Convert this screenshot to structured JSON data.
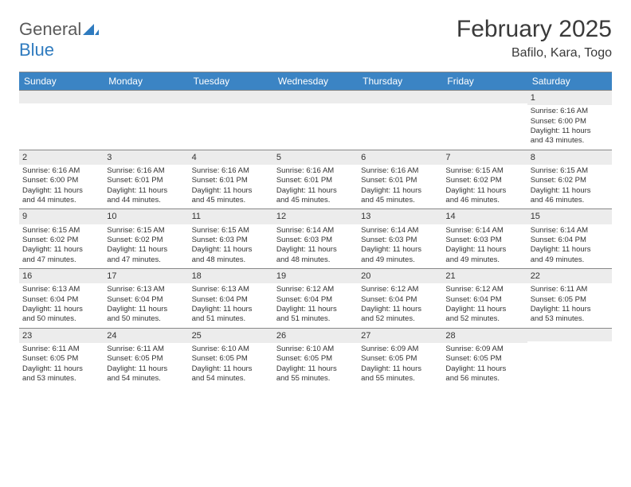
{
  "logo": {
    "text_general": "General",
    "text_blue": "Blue"
  },
  "title": "February 2025",
  "location": "Bafilo, Kara, Togo",
  "day_headers": [
    "Sunday",
    "Monday",
    "Tuesday",
    "Wednesday",
    "Thursday",
    "Friday",
    "Saturday"
  ],
  "colors": {
    "header_bg": "#3b84c4",
    "header_text": "#ffffff",
    "daynum_bg": "#ececec",
    "rule": "#888888",
    "text": "#333333"
  },
  "weeks": [
    [
      {
        "n": "",
        "sr": "",
        "ss": "",
        "da": "",
        "db": ""
      },
      {
        "n": "",
        "sr": "",
        "ss": "",
        "da": "",
        "db": ""
      },
      {
        "n": "",
        "sr": "",
        "ss": "",
        "da": "",
        "db": ""
      },
      {
        "n": "",
        "sr": "",
        "ss": "",
        "da": "",
        "db": ""
      },
      {
        "n": "",
        "sr": "",
        "ss": "",
        "da": "",
        "db": ""
      },
      {
        "n": "",
        "sr": "",
        "ss": "",
        "da": "",
        "db": ""
      },
      {
        "n": "1",
        "sr": "Sunrise: 6:16 AM",
        "ss": "Sunset: 6:00 PM",
        "da": "Daylight: 11 hours",
        "db": "and 43 minutes."
      }
    ],
    [
      {
        "n": "2",
        "sr": "Sunrise: 6:16 AM",
        "ss": "Sunset: 6:00 PM",
        "da": "Daylight: 11 hours",
        "db": "and 44 minutes."
      },
      {
        "n": "3",
        "sr": "Sunrise: 6:16 AM",
        "ss": "Sunset: 6:01 PM",
        "da": "Daylight: 11 hours",
        "db": "and 44 minutes."
      },
      {
        "n": "4",
        "sr": "Sunrise: 6:16 AM",
        "ss": "Sunset: 6:01 PM",
        "da": "Daylight: 11 hours",
        "db": "and 45 minutes."
      },
      {
        "n": "5",
        "sr": "Sunrise: 6:16 AM",
        "ss": "Sunset: 6:01 PM",
        "da": "Daylight: 11 hours",
        "db": "and 45 minutes."
      },
      {
        "n": "6",
        "sr": "Sunrise: 6:16 AM",
        "ss": "Sunset: 6:01 PM",
        "da": "Daylight: 11 hours",
        "db": "and 45 minutes."
      },
      {
        "n": "7",
        "sr": "Sunrise: 6:15 AM",
        "ss": "Sunset: 6:02 PM",
        "da": "Daylight: 11 hours",
        "db": "and 46 minutes."
      },
      {
        "n": "8",
        "sr": "Sunrise: 6:15 AM",
        "ss": "Sunset: 6:02 PM",
        "da": "Daylight: 11 hours",
        "db": "and 46 minutes."
      }
    ],
    [
      {
        "n": "9",
        "sr": "Sunrise: 6:15 AM",
        "ss": "Sunset: 6:02 PM",
        "da": "Daylight: 11 hours",
        "db": "and 47 minutes."
      },
      {
        "n": "10",
        "sr": "Sunrise: 6:15 AM",
        "ss": "Sunset: 6:02 PM",
        "da": "Daylight: 11 hours",
        "db": "and 47 minutes."
      },
      {
        "n": "11",
        "sr": "Sunrise: 6:15 AM",
        "ss": "Sunset: 6:03 PM",
        "da": "Daylight: 11 hours",
        "db": "and 48 minutes."
      },
      {
        "n": "12",
        "sr": "Sunrise: 6:14 AM",
        "ss": "Sunset: 6:03 PM",
        "da": "Daylight: 11 hours",
        "db": "and 48 minutes."
      },
      {
        "n": "13",
        "sr": "Sunrise: 6:14 AM",
        "ss": "Sunset: 6:03 PM",
        "da": "Daylight: 11 hours",
        "db": "and 49 minutes."
      },
      {
        "n": "14",
        "sr": "Sunrise: 6:14 AM",
        "ss": "Sunset: 6:03 PM",
        "da": "Daylight: 11 hours",
        "db": "and 49 minutes."
      },
      {
        "n": "15",
        "sr": "Sunrise: 6:14 AM",
        "ss": "Sunset: 6:04 PM",
        "da": "Daylight: 11 hours",
        "db": "and 49 minutes."
      }
    ],
    [
      {
        "n": "16",
        "sr": "Sunrise: 6:13 AM",
        "ss": "Sunset: 6:04 PM",
        "da": "Daylight: 11 hours",
        "db": "and 50 minutes."
      },
      {
        "n": "17",
        "sr": "Sunrise: 6:13 AM",
        "ss": "Sunset: 6:04 PM",
        "da": "Daylight: 11 hours",
        "db": "and 50 minutes."
      },
      {
        "n": "18",
        "sr": "Sunrise: 6:13 AM",
        "ss": "Sunset: 6:04 PM",
        "da": "Daylight: 11 hours",
        "db": "and 51 minutes."
      },
      {
        "n": "19",
        "sr": "Sunrise: 6:12 AM",
        "ss": "Sunset: 6:04 PM",
        "da": "Daylight: 11 hours",
        "db": "and 51 minutes."
      },
      {
        "n": "20",
        "sr": "Sunrise: 6:12 AM",
        "ss": "Sunset: 6:04 PM",
        "da": "Daylight: 11 hours",
        "db": "and 52 minutes."
      },
      {
        "n": "21",
        "sr": "Sunrise: 6:12 AM",
        "ss": "Sunset: 6:04 PM",
        "da": "Daylight: 11 hours",
        "db": "and 52 minutes."
      },
      {
        "n": "22",
        "sr": "Sunrise: 6:11 AM",
        "ss": "Sunset: 6:05 PM",
        "da": "Daylight: 11 hours",
        "db": "and 53 minutes."
      }
    ],
    [
      {
        "n": "23",
        "sr": "Sunrise: 6:11 AM",
        "ss": "Sunset: 6:05 PM",
        "da": "Daylight: 11 hours",
        "db": "and 53 minutes."
      },
      {
        "n": "24",
        "sr": "Sunrise: 6:11 AM",
        "ss": "Sunset: 6:05 PM",
        "da": "Daylight: 11 hours",
        "db": "and 54 minutes."
      },
      {
        "n": "25",
        "sr": "Sunrise: 6:10 AM",
        "ss": "Sunset: 6:05 PM",
        "da": "Daylight: 11 hours",
        "db": "and 54 minutes."
      },
      {
        "n": "26",
        "sr": "Sunrise: 6:10 AM",
        "ss": "Sunset: 6:05 PM",
        "da": "Daylight: 11 hours",
        "db": "and 55 minutes."
      },
      {
        "n": "27",
        "sr": "Sunrise: 6:09 AM",
        "ss": "Sunset: 6:05 PM",
        "da": "Daylight: 11 hours",
        "db": "and 55 minutes."
      },
      {
        "n": "28",
        "sr": "Sunrise: 6:09 AM",
        "ss": "Sunset: 6:05 PM",
        "da": "Daylight: 11 hours",
        "db": "and 56 minutes."
      },
      {
        "n": "",
        "sr": "",
        "ss": "",
        "da": "",
        "db": ""
      }
    ]
  ]
}
